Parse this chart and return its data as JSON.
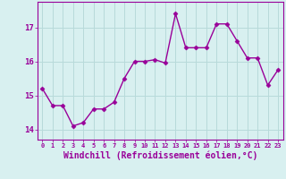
{
  "x": [
    0,
    1,
    2,
    3,
    4,
    5,
    6,
    7,
    8,
    9,
    10,
    11,
    12,
    13,
    14,
    15,
    16,
    17,
    18,
    19,
    20,
    21,
    22,
    23
  ],
  "y": [
    15.2,
    14.7,
    14.7,
    14.1,
    14.2,
    14.6,
    14.6,
    14.8,
    15.5,
    16.0,
    16.0,
    16.05,
    15.95,
    17.4,
    16.4,
    16.4,
    16.4,
    17.1,
    17.1,
    16.6,
    16.1,
    16.1,
    15.3,
    15.75
  ],
  "line_color": "#990099",
  "marker": "D",
  "markersize": 2.5,
  "linewidth": 1.0,
  "xlabel": "Windchill (Refroidissement éolien,°C)",
  "xlabel_fontsize": 7,
  "xtick_labels": [
    "0",
    "1",
    "2",
    "3",
    "4",
    "5",
    "6",
    "7",
    "8",
    "9",
    "10",
    "11",
    "12",
    "13",
    "14",
    "15",
    "16",
    "17",
    "18",
    "19",
    "20",
    "21",
    "22",
    "23"
  ],
  "ytick_positions": [
    14,
    15,
    16,
    17
  ],
  "ytick_labels": [
    "14",
    "15",
    "16",
    "17"
  ],
  "ylim": [
    13.7,
    17.75
  ],
  "xlim": [
    -0.5,
    23.5
  ],
  "bg_color": "#d8f0f0",
  "grid_color": "#b8dada",
  "tick_color": "#990099",
  "label_color": "#990099"
}
